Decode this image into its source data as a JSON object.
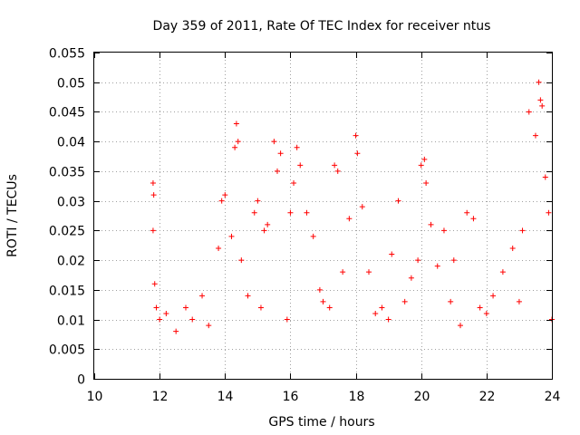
{
  "chart_data": {
    "type": "scatter",
    "title": "Day 359 of 2011, Rate Of TEC Index for receiver ntus",
    "xlabel": "GPS time / hours",
    "ylabel": "ROTI / TECUs",
    "xlim": [
      10,
      24
    ],
    "ylim": [
      0,
      0.055
    ],
    "xticks": [
      "10",
      "12",
      "14",
      "16",
      "18",
      "20",
      "22",
      "24"
    ],
    "yticks": [
      "0",
      "0.005",
      "0.01",
      "0.015",
      "0.02",
      "0.025",
      "0.03",
      "0.035",
      "0.04",
      "0.045",
      "0.05",
      "0.055"
    ],
    "grid": true,
    "marker": "+",
    "color": "#ff0000",
    "series": [
      {
        "x": [
          11.8,
          11.8,
          11.82,
          11.85,
          11.9,
          12.0,
          12.2,
          12.5,
          12.8,
          13.0,
          13.3,
          13.5,
          13.8,
          13.9,
          14.0,
          14.2,
          14.3,
          14.35,
          14.4,
          14.5,
          14.7,
          14.9,
          15.0,
          15.1,
          15.2,
          15.3,
          15.5,
          15.6,
          15.7,
          15.9,
          16.0,
          16.1,
          16.2,
          16.3,
          16.5,
          16.7,
          16.9,
          17.0,
          17.2,
          17.35,
          17.45,
          17.6,
          17.8,
          18.0,
          18.05,
          18.2,
          18.4,
          18.6,
          18.8,
          19.0,
          19.1,
          19.3,
          19.5,
          19.7,
          19.9,
          20.0,
          20.1,
          20.15,
          20.3,
          20.5,
          20.7,
          20.9,
          21.0,
          21.2,
          21.4,
          21.6,
          21.8,
          22.0,
          22.2,
          22.5,
          22.8,
          23.0,
          23.1,
          23.3,
          23.5,
          23.6,
          23.65,
          23.7,
          23.8,
          23.9,
          24.0
        ],
        "y": [
          0.025,
          0.033,
          0.031,
          0.016,
          0.012,
          0.01,
          0.011,
          0.008,
          0.012,
          0.01,
          0.014,
          0.009,
          0.022,
          0.03,
          0.031,
          0.024,
          0.039,
          0.043,
          0.04,
          0.02,
          0.014,
          0.028,
          0.03,
          0.012,
          0.025,
          0.026,
          0.04,
          0.035,
          0.038,
          0.01,
          0.028,
          0.033,
          0.039,
          0.036,
          0.028,
          0.024,
          0.015,
          0.013,
          0.012,
          0.036,
          0.035,
          0.018,
          0.027,
          0.041,
          0.038,
          0.029,
          0.018,
          0.011,
          0.012,
          0.01,
          0.021,
          0.03,
          0.013,
          0.017,
          0.02,
          0.036,
          0.037,
          0.033,
          0.026,
          0.019,
          0.025,
          0.013,
          0.02,
          0.009,
          0.028,
          0.027,
          0.012,
          0.011,
          0.014,
          0.018,
          0.022,
          0.013,
          0.025,
          0.045,
          0.041,
          0.05,
          0.047,
          0.046,
          0.034,
          0.028,
          0.01
        ]
      }
    ]
  }
}
